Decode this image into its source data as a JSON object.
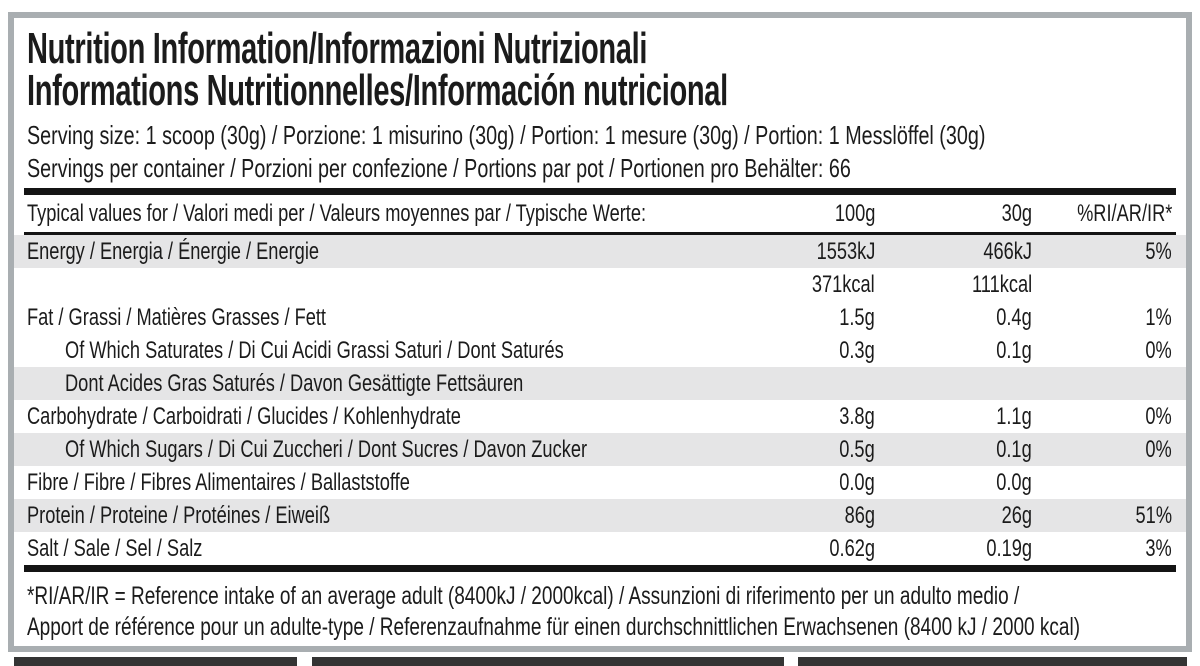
{
  "label": {
    "title_line1": "Nutrition Information/Informazioni Nutrizionali",
    "title_line2": "Informations Nutritionnelles/Información nutricional",
    "serving_size": "Serving size: 1 scoop (30g) / Porzione: 1 misurino (30g) / Portion: 1 mesure (30g) / Portion: 1 Messlöffel (30g)",
    "servings_per_container": "Servings per container / Porzioni per confezione / Portions par pot / Portionen pro Behälter: 66",
    "footnote_line1": "*RI/AR/IR = Reference intake of an average adult (8400kJ / 2000kcal) / Assunzioni di riferimento per un adulto medio /",
    "footnote_line2": "Apport de référence pour un adulte-type / Referenzaufnahme für einen durchschnittlichen Erwachsenen (8400 kJ / 2000 kcal)"
  },
  "table": {
    "header": {
      "label": "Typical values for / Valori medi per / Valeurs moyennes par / Typische Werte:",
      "col_100g": "100g",
      "col_30g": "30g",
      "col_ri": "%RI/AR/IR*"
    },
    "rows": [
      {
        "label": "Energy / Energia / Énergie / Energie",
        "v100": "1553kJ",
        "v30": "466kJ",
        "ri": "5%"
      },
      {
        "label": "",
        "v100": "371kcal",
        "v30": "111kcal",
        "ri": ""
      },
      {
        "label": "Fat / Grassi / Matières Grasses / Fett",
        "v100": "1.5g",
        "v30": "0.4g",
        "ri": "1%"
      },
      {
        "label": "Of Which Saturates / Di Cui Acidi Grassi Saturi / Dont Saturés",
        "v100": "0.3g",
        "v30": "0.1g",
        "ri": "0%"
      },
      {
        "label": "Dont Acides Gras Saturés / Davon Gesättigte Fettsäuren",
        "v100": "",
        "v30": "",
        "ri": ""
      },
      {
        "label": "Carbohydrate / Carboidrati / Glucides / Kohlenhydrate",
        "v100": "3.8g",
        "v30": "1.1g",
        "ri": "0%"
      },
      {
        "label": "Of Which Sugars / Di Cui Zuccheri / Dont Sucres / Davon Zucker",
        "v100": "0.5g",
        "v30": "0.1g",
        "ri": "0%"
      },
      {
        "label": "Fibre / Fibre / Fibres Alimentaires / Ballaststoffe",
        "v100": "0.0g",
        "v30": "0.0g",
        "ri": ""
      },
      {
        "label": "Protein / Proteine / Protéines / Eiweiß",
        "v100": "86g",
        "v30": "26g",
        "ri": "51%"
      },
      {
        "label": "Salt / Sale / Sel / Salz",
        "v100": "0.62g",
        "v30": "0.19g",
        "ri": "3%"
      }
    ]
  },
  "colors": {
    "text": "#1b1b1b",
    "row_shade": "#e5e5e6",
    "panel_border": "#a9aeb1",
    "rule": "#141414",
    "background": "#ffffff",
    "cutoff_bar": "#343434"
  }
}
